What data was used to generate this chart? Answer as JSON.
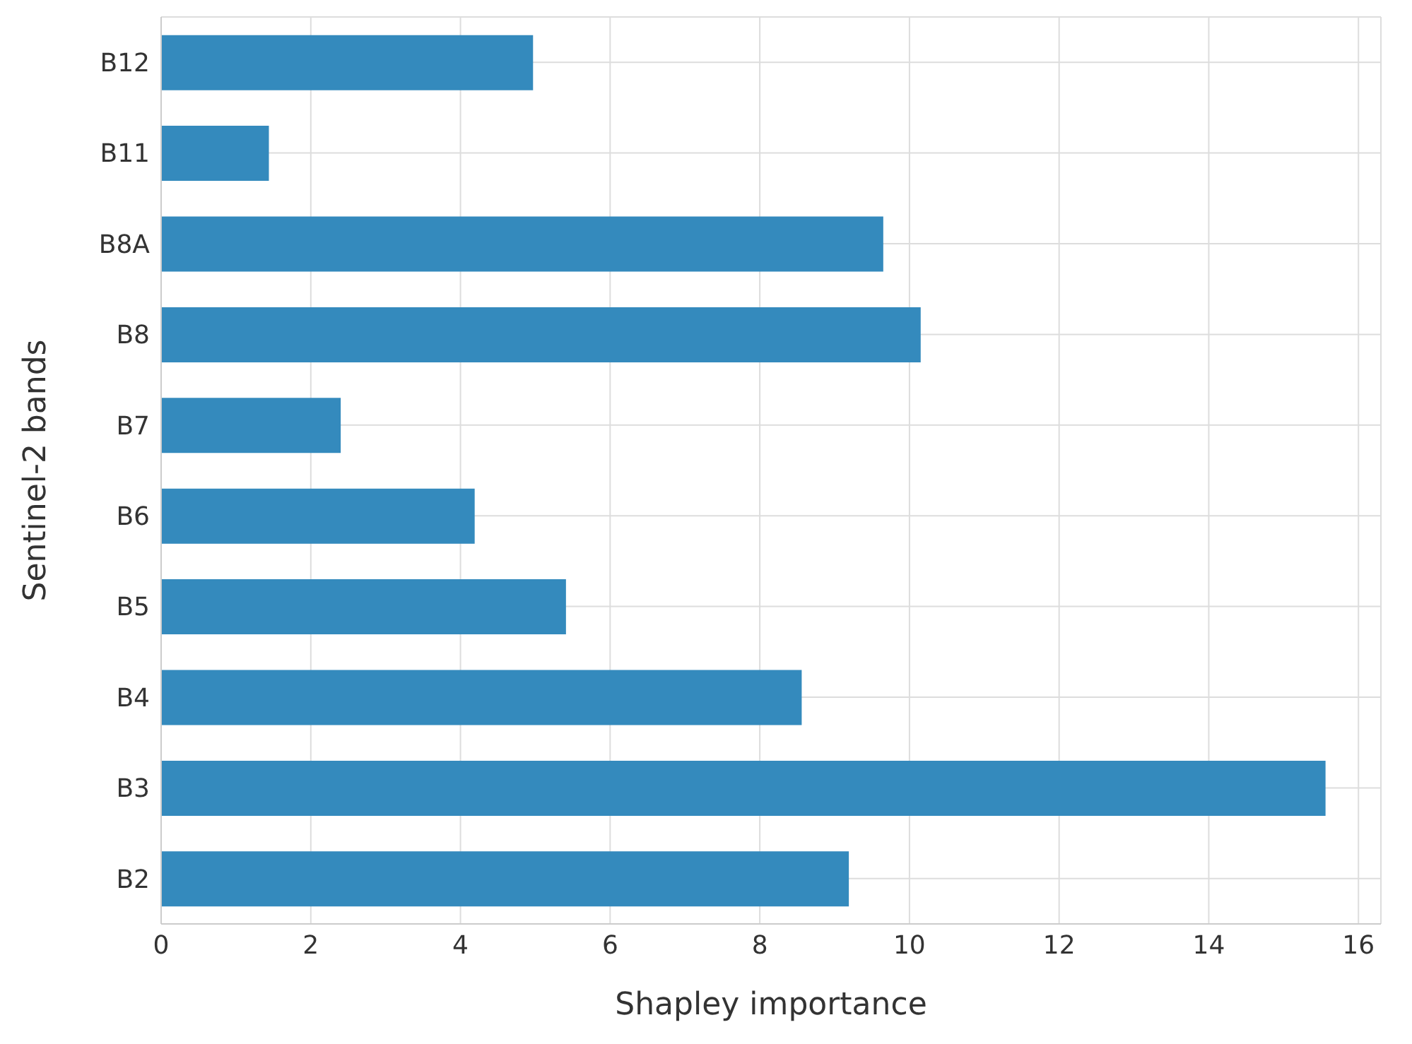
{
  "chart_data": {
    "type": "bar",
    "orientation": "horizontal",
    "xlabel": "Shapley importance",
    "ylabel": "Sentinel-2 bands",
    "categories": [
      "B12",
      "B11",
      "B8A",
      "B8",
      "B7",
      "B6",
      "B5",
      "B4",
      "B3",
      "B2"
    ],
    "values": [
      4.97,
      1.44,
      9.65,
      10.15,
      2.4,
      4.19,
      5.41,
      8.56,
      15.56,
      9.19
    ],
    "color": "#348abd",
    "xlim": [
      0,
      16.3
    ],
    "xticks": [
      0,
      2,
      4,
      6,
      8,
      10,
      12,
      14,
      16
    ],
    "grid": true
  }
}
